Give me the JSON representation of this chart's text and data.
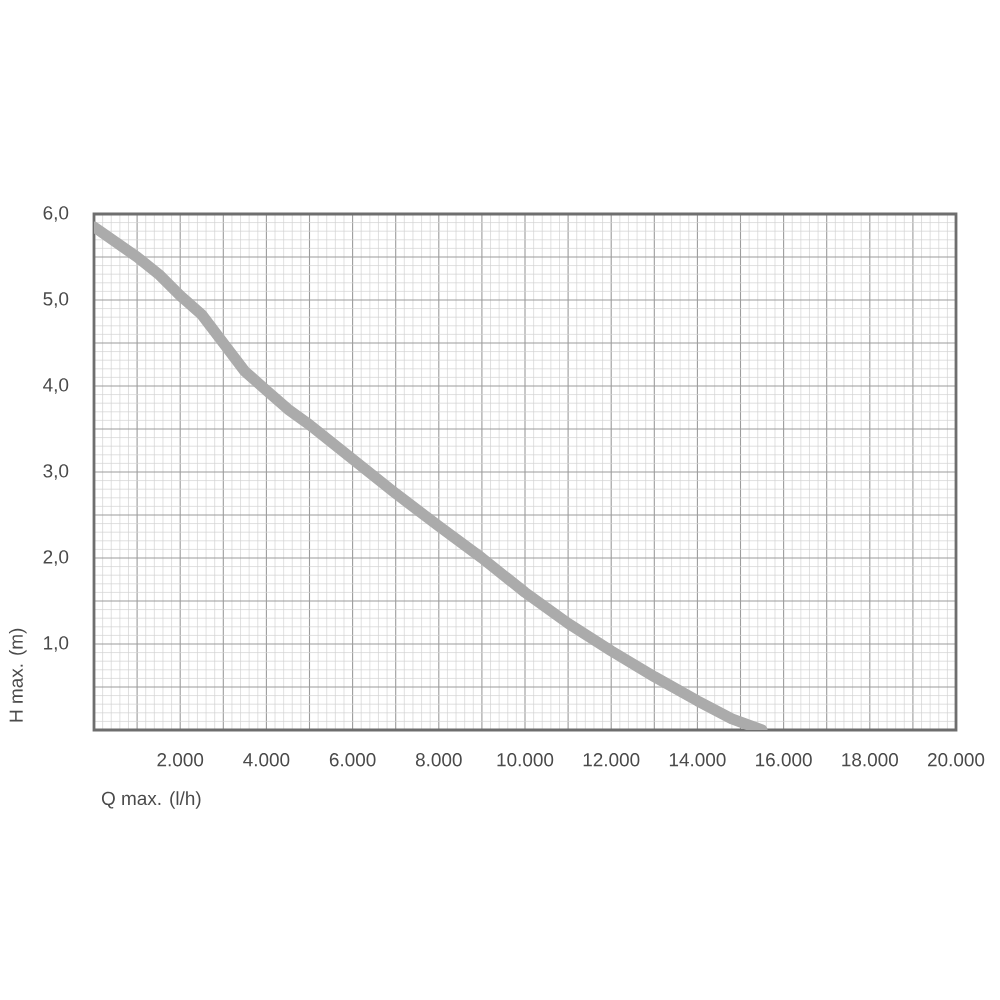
{
  "chart_data": {
    "type": "line",
    "xlabel": "Q max. (l/h)",
    "ylabel": "H max. (m)",
    "x": [
      0,
      1000,
      1500,
      2000,
      2500,
      3000,
      3500,
      4000,
      4500,
      5000,
      6000,
      7000,
      8000,
      9000,
      10000,
      11000,
      12000,
      13000,
      14000,
      14800,
      15500
    ],
    "series": [
      {
        "color": "#ababab",
        "values": [
          5.85,
          5.5,
          5.3,
          5.05,
          4.83,
          4.5,
          4.17,
          3.95,
          3.73,
          3.55,
          3.15,
          2.75,
          2.37,
          2.0,
          1.6,
          1.24,
          0.92,
          0.62,
          0.34,
          0.13,
          0
        ]
      }
    ],
    "xlim": [
      0,
      20000
    ],
    "ylim": [
      0,
      6
    ],
    "xticks": [
      {
        "value": 0,
        "label": null
      },
      {
        "value": 1000,
        "label": null
      },
      {
        "value": 2000,
        "label": "2.000"
      },
      {
        "value": 3000,
        "label": null
      },
      {
        "value": 4000,
        "label": "4.000"
      },
      {
        "value": 5000,
        "label": null
      },
      {
        "value": 6000,
        "label": "6.000"
      },
      {
        "value": 7000,
        "label": null
      },
      {
        "value": 8000,
        "label": "8.000"
      },
      {
        "value": 9000,
        "label": null
      },
      {
        "value": 10000,
        "label": "10.000"
      },
      {
        "value": 11000,
        "label": null
      },
      {
        "value": 12000,
        "label": "12.000"
      },
      {
        "value": 13000,
        "label": null
      },
      {
        "value": 14000,
        "label": "14.000"
      },
      {
        "value": 15000,
        "label": null
      },
      {
        "value": 16000,
        "label": "16.000"
      },
      {
        "value": 17000,
        "label": null
      },
      {
        "value": 18000,
        "label": "18.000"
      },
      {
        "value": 19000,
        "label": null
      },
      {
        "value": 20000,
        "label": "20.000"
      }
    ],
    "yticks": [
      {
        "value": 0,
        "label": null
      },
      {
        "value": 0.5,
        "label": null
      },
      {
        "value": 1,
        "label": "1,0"
      },
      {
        "value": 1.5,
        "label": null
      },
      {
        "value": 2,
        "label": "2,0"
      },
      {
        "value": 2.5,
        "label": null
      },
      {
        "value": 3,
        "label": "3,0"
      },
      {
        "value": 3.5,
        "label": null
      },
      {
        "value": 4,
        "label": "4,0"
      },
      {
        "value": 4.5,
        "label": null
      },
      {
        "value": 5,
        "label": "5,0"
      },
      {
        "value": 5.5,
        "label": null
      },
      {
        "value": 6,
        "label": "6,0"
      }
    ],
    "grid": true
  }
}
